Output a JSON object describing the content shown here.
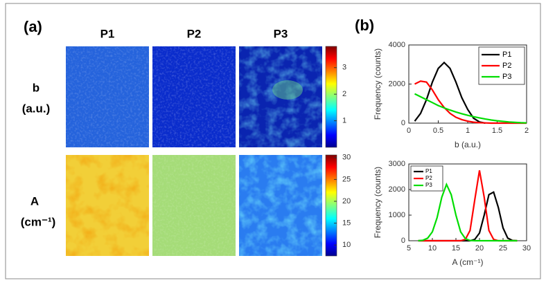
{
  "panel_a": {
    "label": "(a)",
    "columns": [
      "P1",
      "P2",
      "P3"
    ],
    "rows": [
      {
        "label": "b",
        "unit": "(a.u.)"
      },
      {
        "label": "A",
        "unit": "(cm⁻¹)"
      }
    ],
    "colorbars": [
      {
        "lim": [
          0,
          3.8
        ],
        "ticks": [
          1,
          2,
          3
        ]
      },
      {
        "lim": [
          7.5,
          30.6
        ],
        "ticks": [
          10,
          15,
          20,
          25,
          30
        ]
      }
    ]
  },
  "panel_b_label": "(b)",
  "chart_data": [
    {
      "type": "line",
      "x_label": "b (a.u.)",
      "y_label": "Frequency (counts)",
      "x": [
        0.1,
        0.2,
        0.3,
        0.4,
        0.5,
        0.6,
        0.7,
        0.8,
        0.9,
        1.0,
        1.1,
        1.2,
        1.3,
        1.4,
        1.5,
        1.6,
        1.7,
        1.8,
        1.9,
        2.0
      ],
      "series": [
        {
          "name": "P1",
          "color": "#000000",
          "values": [
            100,
            500,
            1200,
            2100,
            2800,
            3100,
            2800,
            2100,
            1300,
            700,
            250,
            60,
            0,
            null,
            null,
            null,
            null,
            null,
            null,
            null
          ]
        },
        {
          "name": "P2",
          "color": "#ff0000",
          "values": [
            2000,
            2150,
            2100,
            1700,
            1200,
            800,
            500,
            300,
            180,
            100,
            50,
            20,
            10,
            0,
            0,
            0,
            0,
            0,
            0,
            0
          ]
        },
        {
          "name": "P3",
          "color": "#00dd00",
          "values": [
            1500,
            1350,
            1200,
            1050,
            900,
            780,
            670,
            570,
            480,
            400,
            330,
            270,
            210,
            160,
            120,
            90,
            60,
            40,
            20,
            10
          ]
        }
      ],
      "xlim": [
        0,
        2
      ],
      "xticks": [
        0,
        0.5,
        1,
        1.5,
        2
      ],
      "ylim": [
        0,
        4000
      ],
      "yticks": [
        0,
        2000,
        4000
      ],
      "legend": "top-right"
    },
    {
      "type": "line",
      "x_label": "A (cm⁻¹)",
      "y_label": "Frequency (counts)",
      "x": [
        7,
        8,
        9,
        10,
        11,
        12,
        13,
        14,
        15,
        16,
        17,
        18,
        19,
        20,
        21,
        22,
        23,
        24,
        25,
        26,
        27,
        28
      ],
      "series": [
        {
          "name": "P1",
          "color": "#000000",
          "values": [
            0,
            0,
            0,
            0,
            0,
            0,
            0,
            0,
            0,
            0,
            0,
            0,
            50,
            300,
            1000,
            1800,
            1900,
            1300,
            500,
            100,
            10,
            0
          ]
        },
        {
          "name": "P2",
          "color": "#ff0000",
          "values": [
            0,
            0,
            0,
            0,
            0,
            0,
            0,
            0,
            0,
            0,
            50,
            400,
            1600,
            2750,
            1700,
            400,
            50,
            0,
            0,
            0,
            0,
            0
          ]
        },
        {
          "name": "P3",
          "color": "#00dd00",
          "values": [
            0,
            20,
            100,
            350,
            900,
            1700,
            2200,
            1800,
            1000,
            350,
            80,
            10,
            0,
            0,
            0,
            0,
            0,
            0,
            0,
            0,
            0,
            0
          ]
        }
      ],
      "xlim": [
        5,
        30
      ],
      "xticks": [
        5,
        10,
        15,
        20,
        25,
        30
      ],
      "ylim": [
        0,
        3000
      ],
      "yticks": [
        0,
        1000,
        2000,
        3000
      ],
      "legend": "top-left"
    }
  ]
}
